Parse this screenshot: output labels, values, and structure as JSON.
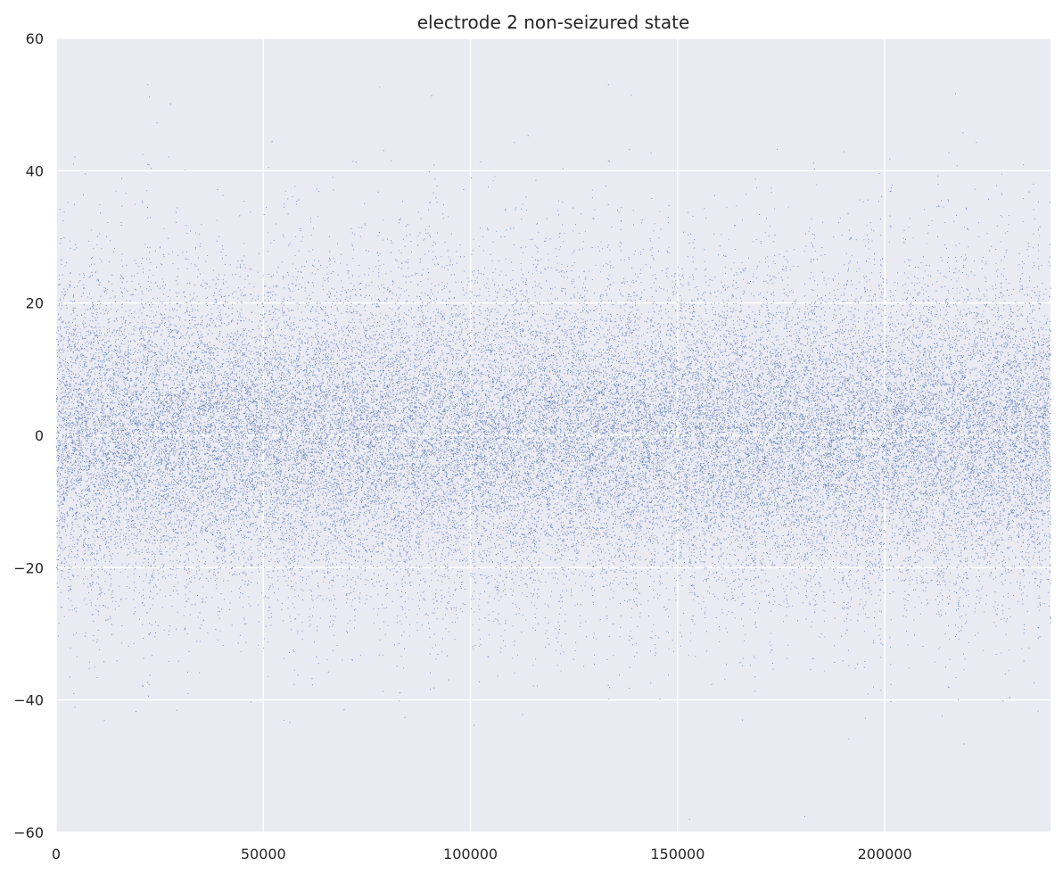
{
  "chart_data": {
    "type": "scatter",
    "title": "electrode 2 non-seizured state",
    "xlabel": "",
    "ylabel": "",
    "xlim": [
      0,
      240000
    ],
    "ylim": [
      -60,
      60
    ],
    "x_ticks": [
      0,
      50000,
      100000,
      150000,
      200000
    ],
    "x_tick_labels": [
      "0",
      "50000",
      "100000",
      "150000",
      "200000"
    ],
    "y_ticks": [
      -60,
      -40,
      -20,
      0,
      20,
      40,
      60
    ],
    "y_tick_labels": [
      "−60",
      "−40",
      "−20",
      "0",
      "20",
      "40",
      "60"
    ],
    "grid": true,
    "legend": "none",
    "background_color": "#eaeaf2",
    "grid_color": "#ffffff",
    "marker_color": "#4c72b0",
    "series": [
      {
        "description_note_free": true,
        "x_start": 0,
        "x_end": 240000,
        "y_center": 0,
        "y_typical_range": [
          -20,
          20
        ],
        "y_observed_range": [
          -58,
          53
        ]
      }
    ]
  }
}
